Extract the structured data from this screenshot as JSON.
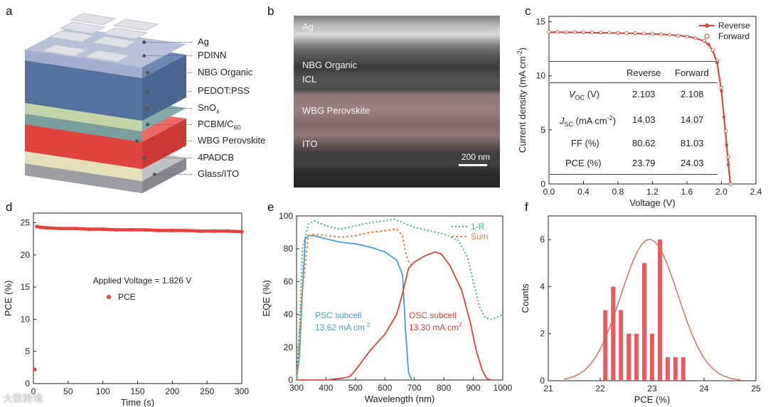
{
  "panels": {
    "a": {
      "label": "a",
      "layers": [
        "Ag",
        "PDINN",
        "NBG Organic",
        "PEDOT:PSS",
        "SnO",
        "x",
        "PCBM/C",
        "60",
        "WBG Perovskite",
        "4PADCB",
        "Glass/ITO"
      ],
      "colors": {
        "ag": "#d0d3da",
        "pdinn": "#9aa6c8",
        "nbg": "#5a77a8",
        "pedot": "#c9d8b4",
        "sno": "#7fa6a8",
        "pcbm": "#c85a5a",
        "wbg": "#e3524f",
        "padcb": "#e8e5c4",
        "glass": "#a9abb0"
      }
    },
    "b": {
      "label": "b",
      "layers": [
        "Ag",
        "NBG Organic",
        "ICL",
        "WBG Perovskite",
        "ITO"
      ],
      "scale": "200 nm"
    },
    "c": {
      "label": "c"
    },
    "d": {
      "label": "d"
    },
    "e": {
      "label": "e"
    },
    "f": {
      "label": "f"
    }
  },
  "table_c": {
    "headers": [
      "",
      "Reverse",
      "Forward"
    ],
    "rows": [
      {
        "label": "V",
        "sub": "OC",
        "unit": " (V)",
        "reverse": "2.103",
        "forward": "2.108"
      },
      {
        "label": "J",
        "sub": "SC",
        "unit": " (mA cm",
        "sup": "-2",
        "unit2": ")",
        "reverse": "14.03",
        "forward": "14.07"
      },
      {
        "label": "FF (%)",
        "sub": "",
        "unit": "",
        "reverse": "80.62",
        "forward": "81.03"
      },
      {
        "label": "PCE (%)",
        "sub": "",
        "unit": "",
        "reverse": "23.79",
        "forward": "24.03"
      }
    ]
  },
  "watermark": "大数跨境",
  "chart_data": [
    {
      "panel": "c",
      "type": "line",
      "xlabel": "Voltage (V)",
      "ylabel": "Current density (mA cm",
      "ylabel_sup": "-2",
      "ylabel_end": ")",
      "xlim": [
        0.0,
        2.4
      ],
      "ylim": [
        0,
        15.5
      ],
      "xticks": [
        "0.0",
        "0.4",
        "0.8",
        "1.2",
        "1.6",
        "2.0",
        "2.4"
      ],
      "yticks": [
        "0",
        "5",
        "10",
        "15"
      ],
      "legend": [
        "Reverse",
        "Forward"
      ],
      "series": [
        {
          "name": "Reverse",
          "color": "#d9413a",
          "x": [
            0.0,
            0.2,
            0.4,
            0.6,
            0.8,
            1.0,
            1.2,
            1.4,
            1.6,
            1.7,
            1.8,
            1.85,
            1.9,
            1.95,
            2.0,
            2.03,
            2.06,
            2.08,
            2.103
          ],
          "y": [
            14.03,
            14.02,
            14.0,
            13.98,
            13.95,
            13.92,
            13.88,
            13.8,
            13.65,
            13.5,
            13.2,
            12.9,
            12.3,
            11.2,
            8.6,
            6.2,
            3.6,
            1.8,
            0.0
          ]
        },
        {
          "name": "Forward",
          "color": "#d9413a",
          "x": [
            0.0,
            0.1,
            0.2,
            0.3,
            0.4,
            0.5,
            0.6,
            0.7,
            0.8,
            0.9,
            1.0,
            1.1,
            1.2,
            1.3,
            1.4,
            1.5,
            1.6,
            1.7,
            1.8,
            1.9,
            1.95,
            2.0,
            2.05,
            2.08,
            2.108
          ],
          "y": [
            14.07,
            14.06,
            14.06,
            14.05,
            14.04,
            14.03,
            14.02,
            14.0,
            13.99,
            13.97,
            13.95,
            13.92,
            13.89,
            13.85,
            13.8,
            13.72,
            13.62,
            13.48,
            13.25,
            12.4,
            11.4,
            8.9,
            4.9,
            2.5,
            0.0
          ]
        }
      ]
    },
    {
      "panel": "d",
      "type": "scatter",
      "xlabel": "Time (s)",
      "ylabel": "PCE (%)",
      "xlim": [
        0,
        300
      ],
      "ylim": [
        0,
        26.5
      ],
      "xticks": [
        "0",
        "50",
        "100",
        "150",
        "200",
        "250",
        "300"
      ],
      "yticks": [
        "0",
        "5",
        "10",
        "15",
        "20",
        "25"
      ],
      "annotation": "Applied Voltage = 1.826 V",
      "legend": [
        "PCE"
      ],
      "series": [
        {
          "name": "PCE",
          "color": "#e8403c",
          "x": [
            2,
            5,
            10,
            20,
            40,
            60,
            80,
            100,
            120,
            140,
            160,
            180,
            200,
            220,
            240,
            260,
            280,
            300
          ],
          "y": [
            2.2,
            24.4,
            24.3,
            24.2,
            24.1,
            24.1,
            24.0,
            24.0,
            23.9,
            23.9,
            23.9,
            23.8,
            23.8,
            23.8,
            23.7,
            23.7,
            23.7,
            23.6
          ]
        }
      ]
    },
    {
      "panel": "e",
      "type": "line",
      "xlabel": "Wavelength (nm)",
      "ylabel": "EQE (%)",
      "xlim": [
        300,
        1000
      ],
      "ylim": [
        0,
        100
      ],
      "xticks": [
        "300",
        "400",
        "500",
        "600",
        "700",
        "800",
        "900",
        "1000"
      ],
      "yticks": [
        "0",
        "20",
        "40",
        "60",
        "80",
        "100"
      ],
      "legend": [
        "1-R",
        "Sum"
      ],
      "annotations": [
        {
          "text": "PSC subcell",
          "color": "#4a9cc9"
        },
        {
          "text": "13.62 mA cm",
          "sup": "-2",
          "color": "#4a9cc9"
        },
        {
          "text": "OSC subcell",
          "color": "#d9413a"
        },
        {
          "text": "13.30 mA cm",
          "sup": "2",
          "color": "#d9413a"
        }
      ],
      "series": [
        {
          "name": "PSC subcell",
          "color": "#4a9cc9",
          "x": [
            300,
            310,
            320,
            330,
            340,
            360,
            400,
            450,
            500,
            550,
            600,
            640,
            660,
            670,
            680,
            690,
            700
          ],
          "y": [
            0,
            15,
            55,
            86,
            88,
            88,
            86,
            84,
            83,
            81,
            78,
            73,
            64,
            30,
            5,
            0,
            0
          ]
        },
        {
          "name": "OSC subcell",
          "color": "#d9413a",
          "x": [
            300,
            400,
            450,
            480,
            500,
            550,
            600,
            640,
            660,
            680,
            700,
            740,
            770,
            790,
            820,
            860,
            890,
            910,
            930,
            945,
            960
          ],
          "y": [
            0,
            0,
            1,
            2,
            6,
            18,
            28,
            40,
            53,
            68,
            72,
            76,
            78,
            77,
            70,
            55,
            35,
            18,
            6,
            1,
            0
          ]
        },
        {
          "name": "Sum",
          "color": "#f07d3a",
          "dash": "3,3",
          "x": [
            300,
            320,
            340,
            360,
            400,
            450,
            500,
            550,
            600,
            640,
            660,
            670,
            680,
            690
          ],
          "y": [
            0,
            55,
            88,
            89,
            88,
            87,
            88,
            90,
            91,
            92,
            88,
            78,
            72,
            70
          ]
        },
        {
          "name": "1-R",
          "color": "#3fb37f",
          "dash": "2,3",
          "x": [
            300,
            310,
            320,
            340,
            360,
            400,
            450,
            500,
            550,
            600,
            630,
            660,
            700,
            750,
            800,
            850,
            880,
            900,
            920,
            940,
            960,
            980,
            1000
          ],
          "y": [
            0,
            30,
            80,
            95,
            97,
            94,
            92,
            94,
            96,
            97,
            98,
            96,
            93,
            91,
            89,
            85,
            75,
            60,
            45,
            38,
            37,
            38,
            40
          ]
        }
      ]
    },
    {
      "panel": "f",
      "type": "bar",
      "xlabel": "PCE (%)",
      "ylabel": "Counts",
      "xlim": [
        21,
        25
      ],
      "ylim": [
        0,
        7
      ],
      "xticks": [
        "21",
        "22",
        "23",
        "24",
        "25"
      ],
      "yticks": [
        "0",
        "2",
        "4",
        "6"
      ],
      "bar_color": "#e9474b",
      "categories": [
        22.1,
        22.25,
        22.4,
        22.55,
        22.7,
        22.85,
        23.0,
        23.15,
        23.3,
        23.45,
        23.6,
        23.75,
        23.9
      ],
      "values": [
        3,
        4,
        3,
        2,
        2,
        5,
        2,
        6,
        1,
        1,
        1,
        0,
        0
      ],
      "fit": {
        "type": "gaussian",
        "mean": 22.95,
        "sigma": 0.55,
        "peak": 6.0,
        "color": "#d26a4e"
      }
    }
  ]
}
